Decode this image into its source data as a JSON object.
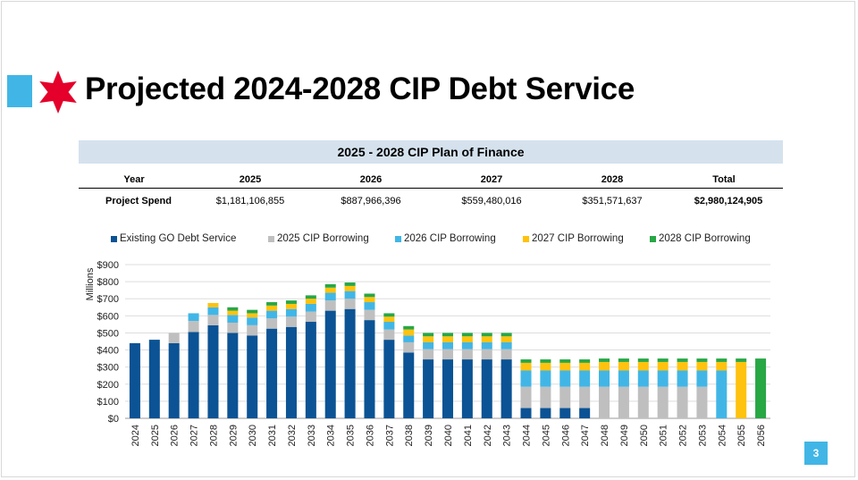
{
  "title": "Projected 2024-2028 CIP Debt Service",
  "page_number": "3",
  "colors": {
    "accent": "#41b6e6",
    "star": "#e4002b"
  },
  "finance_table": {
    "title": "2025 - 2028 CIP Plan of Finance",
    "headers": [
      "Year",
      "2025",
      "2026",
      "2027",
      "2028",
      "Total"
    ],
    "row": {
      "label": "Project Spend",
      "values": [
        "$1,181,106,855",
        "$887,966,396",
        "$559,480,016",
        "$351,571,637",
        "$2,980,124,905"
      ]
    }
  },
  "chart_data": {
    "type": "bar",
    "stacked": true,
    "ylabel": "Millions",
    "ylim": [
      0,
      900
    ],
    "yticks": [
      0,
      100,
      200,
      300,
      400,
      500,
      600,
      700,
      800,
      900
    ],
    "ytick_labels": [
      "$0",
      "$100",
      "$200",
      "$300",
      "$400",
      "$500",
      "$600",
      "$700",
      "$800",
      "$900"
    ],
    "grid": true,
    "legend_position": "top",
    "categories": [
      "2024",
      "2025",
      "2026",
      "2027",
      "2028",
      "2029",
      "2030",
      "2031",
      "2032",
      "2033",
      "2034",
      "2035",
      "2036",
      "2037",
      "2038",
      "2039",
      "2040",
      "2041",
      "2042",
      "2043",
      "2044",
      "2045",
      "2046",
      "2047",
      "2048",
      "2049",
      "2050",
      "2051",
      "2052",
      "2053",
      "2054",
      "2055",
      "2056"
    ],
    "series": [
      {
        "name": "Existing GO Debt Service",
        "color": "#0b5394",
        "values": [
          440,
          460,
          440,
          505,
          545,
          500,
          485,
          525,
          535,
          565,
          630,
          640,
          575,
          460,
          385,
          345,
          345,
          345,
          345,
          345,
          60,
          60,
          60,
          60,
          0,
          0,
          0,
          0,
          0,
          0,
          0,
          0,
          0
        ]
      },
      {
        "name": "2025 CIP Borrowing",
        "color": "#bfbfbf",
        "values": [
          0,
          0,
          60,
          65,
          60,
          60,
          60,
          60,
          60,
          60,
          60,
          60,
          60,
          60,
          60,
          60,
          60,
          60,
          60,
          60,
          125,
          125,
          125,
          125,
          185,
          185,
          185,
          185,
          185,
          185,
          0,
          0,
          0
        ]
      },
      {
        "name": "2026 CIP Borrowing",
        "color": "#41b6e6",
        "values": [
          0,
          0,
          0,
          45,
          45,
          45,
          45,
          45,
          45,
          45,
          45,
          45,
          45,
          45,
          40,
          40,
          40,
          40,
          40,
          40,
          95,
          95,
          95,
          95,
          95,
          95,
          95,
          95,
          95,
          95,
          280,
          0,
          0
        ]
      },
      {
        "name": "2027 CIP Borrowing",
        "color": "#ffc20e",
        "values": [
          0,
          0,
          0,
          0,
          25,
          25,
          25,
          30,
          30,
          30,
          30,
          30,
          30,
          30,
          35,
          35,
          35,
          35,
          35,
          35,
          45,
          45,
          45,
          45,
          50,
          50,
          50,
          50,
          50,
          50,
          50,
          330,
          0
        ]
      },
      {
        "name": "2028 CIP Borrowing",
        "color": "#28a745",
        "values": [
          0,
          0,
          0,
          0,
          0,
          20,
          20,
          20,
          20,
          20,
          20,
          20,
          20,
          20,
          20,
          20,
          20,
          20,
          20,
          20,
          20,
          20,
          20,
          20,
          20,
          20,
          20,
          20,
          20,
          20,
          20,
          20,
          350
        ]
      }
    ]
  }
}
